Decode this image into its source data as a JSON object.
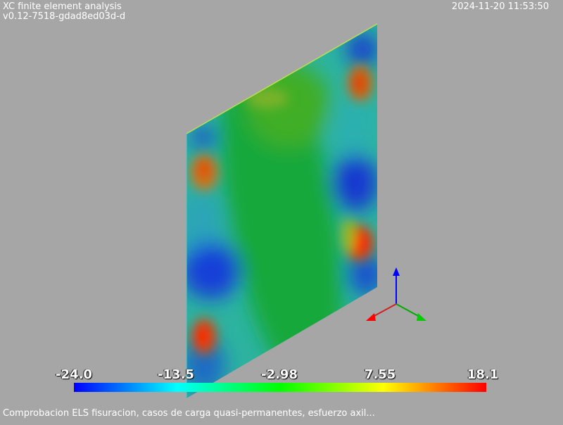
{
  "header": {
    "app_title": "XC finite element analysis",
    "version": "v0.12-7518-gdad8ed03d-d",
    "timestamp": "2024-11-20 11:53:50"
  },
  "footer": {
    "caption": "Comprobacion ELS fisuracion, casos de carga quasi-permanentes, esfuerzo axil..."
  },
  "colorbar": {
    "min": -24.0,
    "max": 18.1,
    "ticks": [
      "-24.0",
      "-13.5",
      "-2.98",
      "7.55",
      "18.1"
    ],
    "colormap": "rainbow blue-to-red",
    "colors": [
      "#0000ff",
      "#00ffff",
      "#00ff00",
      "#ffff00",
      "#ff0000"
    ]
  },
  "axes_triad": {
    "x_color": "#ff0000",
    "y_color": "#00cc00",
    "z_color": "#0000ff"
  },
  "background_color": "#a6a6a6"
}
